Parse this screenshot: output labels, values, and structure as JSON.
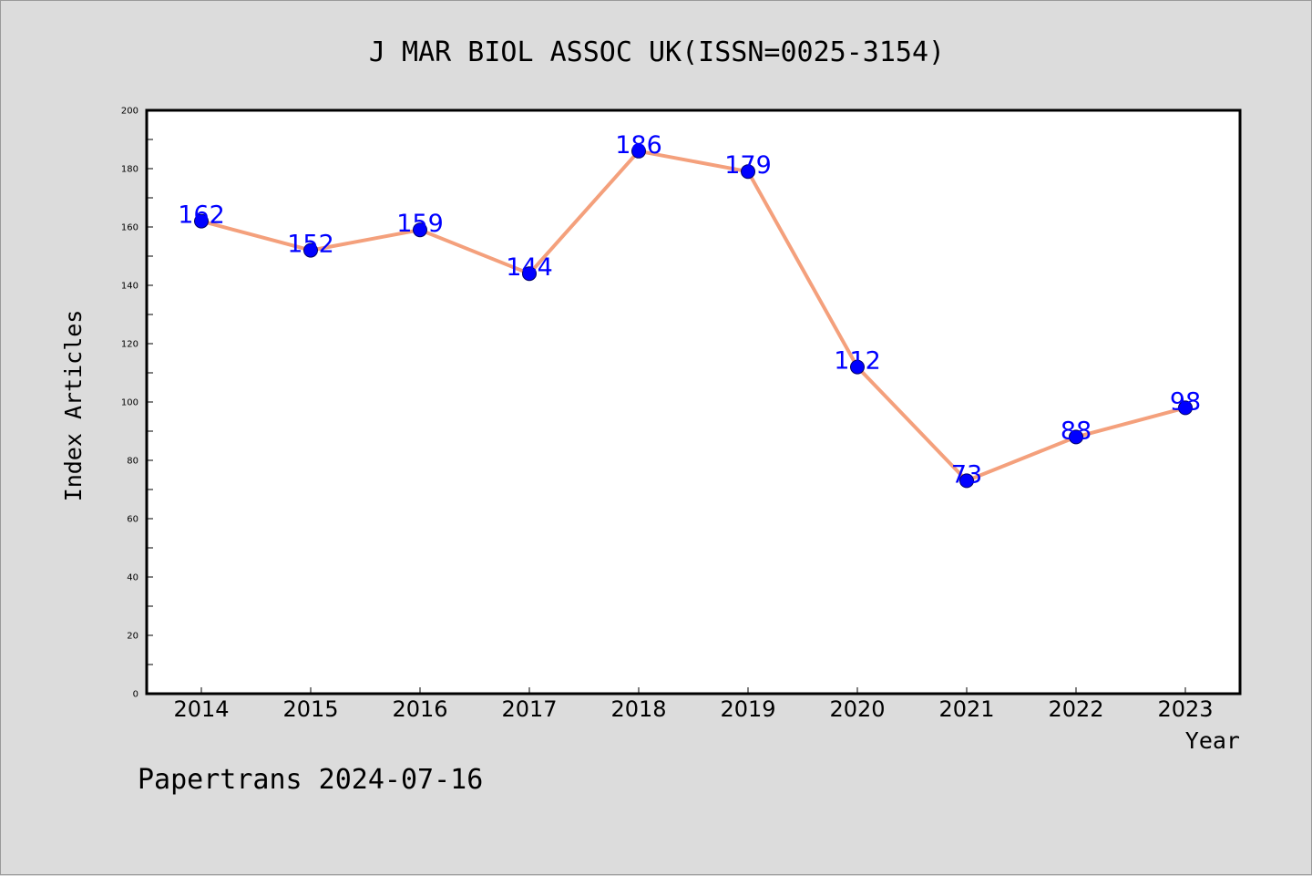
{
  "chart_data": {
    "type": "line",
    "title": "J MAR BIOL ASSOC UK(ISSN=0025-3154)",
    "xlabel": "Year",
    "ylabel": "Index Articles",
    "ylim": [
      0,
      200
    ],
    "yticks": [
      0,
      20,
      40,
      60,
      80,
      100,
      120,
      140,
      160,
      180,
      200
    ],
    "categories": [
      "2014",
      "2015",
      "2016",
      "2017",
      "2018",
      "2019",
      "2020",
      "2021",
      "2022",
      "2023"
    ],
    "series": [
      {
        "values": [
          162,
          152,
          159,
          144,
          186,
          179,
          112,
          73,
          88,
          98
        ],
        "line_color": "#f4a07c",
        "marker_color": "#0000ff"
      }
    ],
    "grid": false,
    "legend": "none"
  },
  "footer": {
    "watermark": "Papertrans 2024-07-16"
  }
}
